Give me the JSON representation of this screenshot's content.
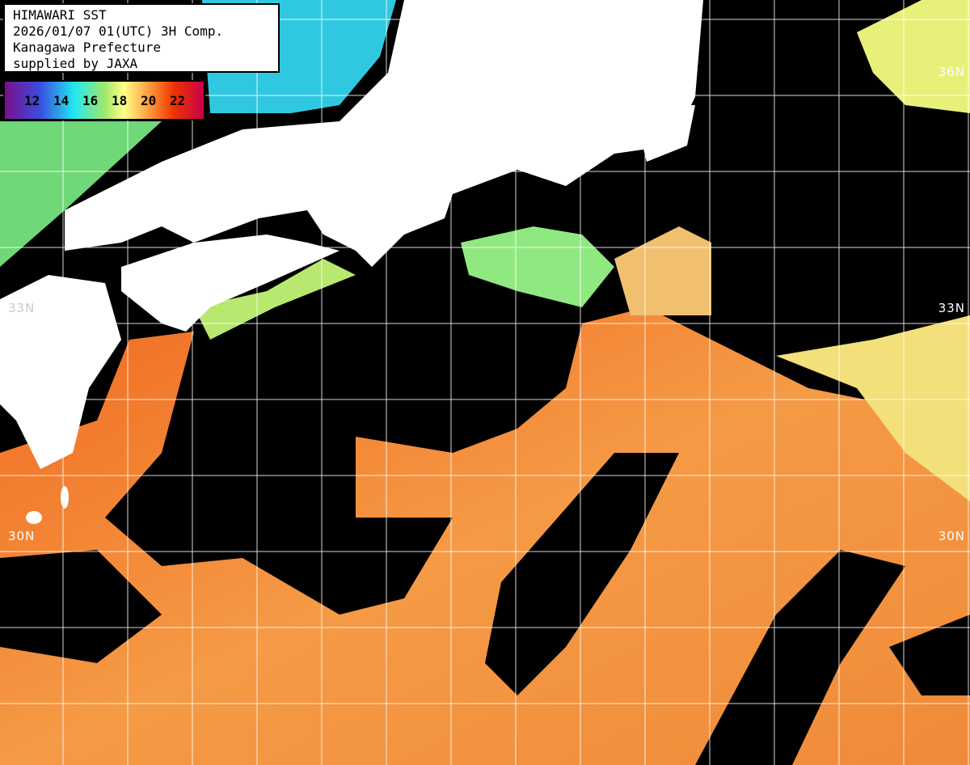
{
  "header": {
    "title": "HIMAWARI SST",
    "datetime": "2026/01/07 01(UTC) 3H Comp.",
    "region": "Kanagawa Prefecture",
    "credit": "supplied by JAXA"
  },
  "legend": {
    "unit_ticks": [
      "12",
      "14",
      "16",
      "18",
      "20",
      "22"
    ],
    "colors": [
      "#7a0f8c",
      "#3a4ee0",
      "#22e8f0",
      "#9fe86a",
      "#ffff88",
      "#ffa040",
      "#ee3300",
      "#c8004a"
    ]
  },
  "latitude_labels": {
    "right": [
      "36N",
      "33N",
      "30N"
    ],
    "left": [
      "33N",
      "30N"
    ]
  },
  "colors": {
    "cloud": "#000000",
    "land": "#ffffff",
    "grid": "#ffffff"
  }
}
